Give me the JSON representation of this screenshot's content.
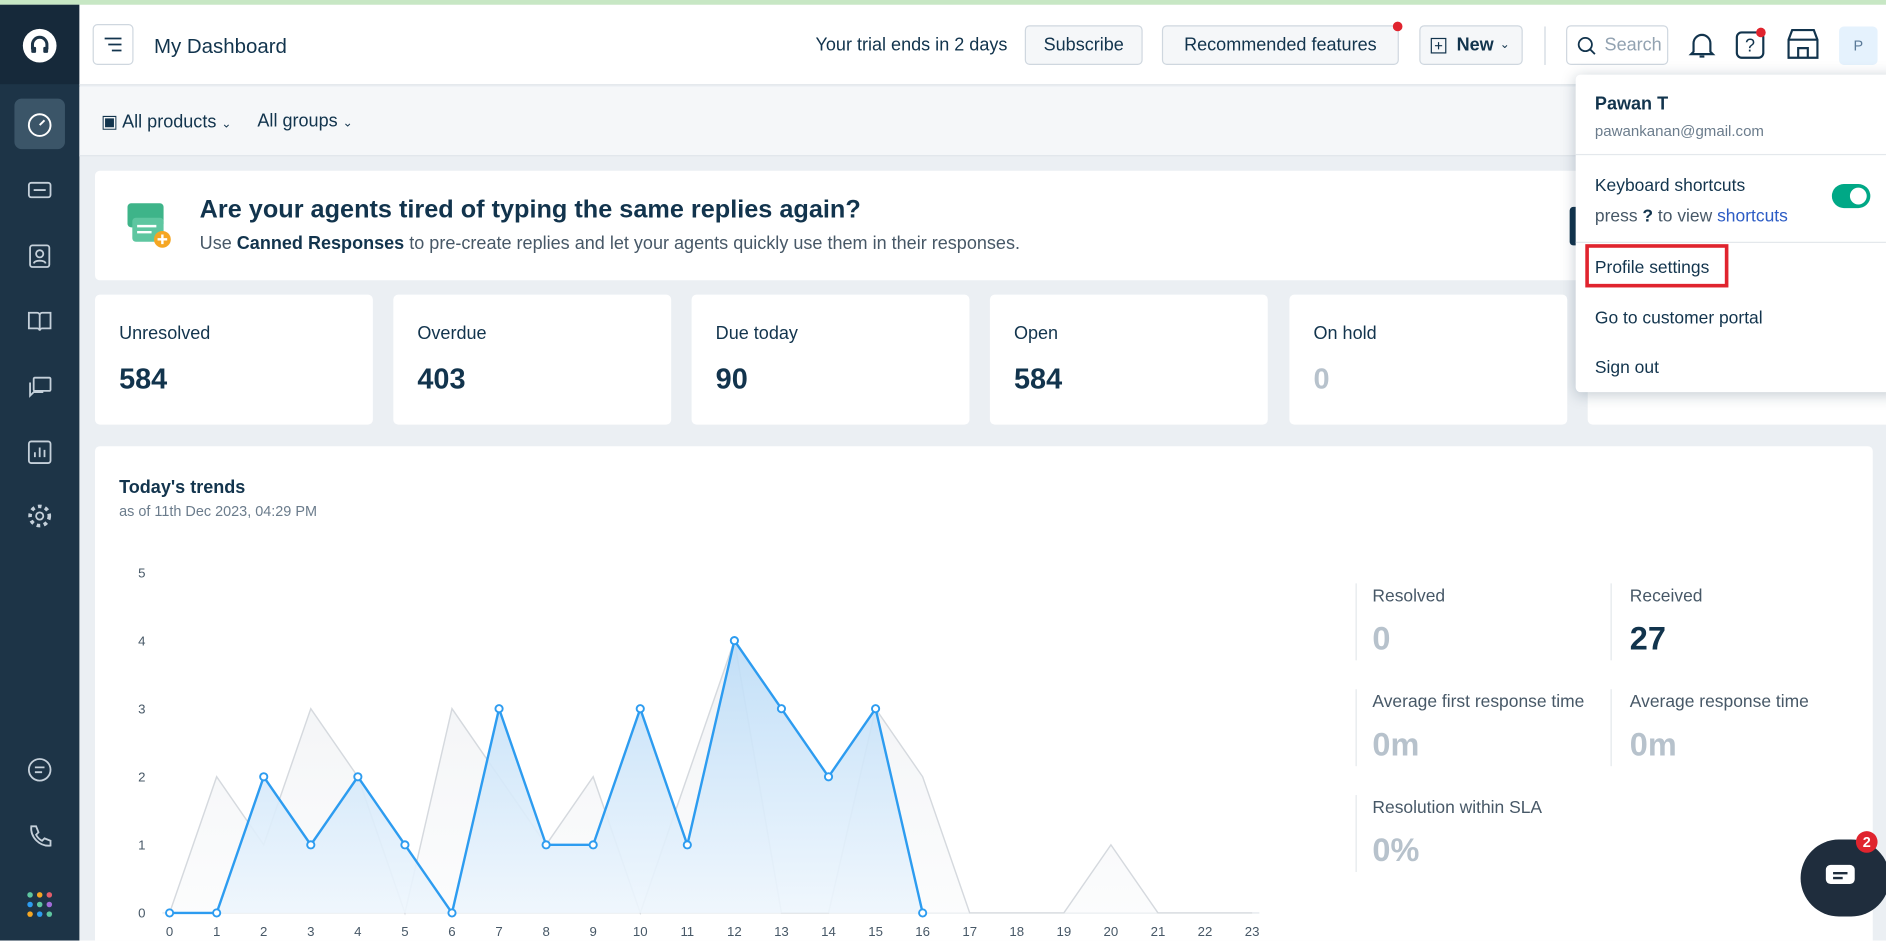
{
  "header": {
    "title": "My Dashboard",
    "trial": "Your trial ends in 2 days",
    "subscribe": "Subscribe",
    "recommended": "Recommended features",
    "new": "New",
    "search": "Search",
    "avatar": "P"
  },
  "filters": [
    "All products",
    "All groups"
  ],
  "banner": {
    "title": "Are your agents tired of typing the same replies again?",
    "prefix": "Use",
    "bold": "Canned Responses",
    "suffix": "to pre-create replies and let your agents quickly use them in their responses."
  },
  "stats": [
    {
      "label": "Unresolved",
      "value": 584
    },
    {
      "label": "Overdue",
      "value": 403
    },
    {
      "label": "Due today",
      "value": 90
    },
    {
      "label": "Open",
      "value": 584
    },
    {
      "label": "On hold",
      "value": 0
    }
  ],
  "trends": {
    "title": "Today's trends",
    "subtitle": "as of 11th Dec 2023, 04:29 PM"
  },
  "metrics": [
    {
      "label": "Resolved",
      "value": "0"
    },
    {
      "label": "Received",
      "value": "27"
    },
    {
      "label": "Average first response time",
      "value": "0m"
    },
    {
      "label": "Average response time",
      "value": "0m"
    },
    {
      "label": "Resolution within SLA",
      "value": "0%"
    }
  ],
  "menu": {
    "name": "Pawan T",
    "email": "pawankanan@gmail.com",
    "shortcuts_title": "Keyboard shortcuts",
    "press": "press",
    "key": "?",
    "to_view": "to view",
    "link": "shortcuts",
    "items": [
      "Profile settings",
      "Go to customer portal",
      "Sign out"
    ]
  },
  "chat_badge": "2",
  "chart_data": {
    "type": "line",
    "x": [
      0,
      1,
      2,
      3,
      4,
      5,
      6,
      7,
      8,
      9,
      10,
      11,
      12,
      13,
      14,
      15,
      16,
      17,
      18,
      19,
      20,
      21,
      22,
      23
    ],
    "xlim": [
      0,
      23
    ],
    "xticks": [
      0,
      1,
      2,
      3,
      4,
      5,
      6,
      7,
      8,
      9,
      10,
      11,
      12,
      13,
      14,
      15,
      16,
      17,
      18,
      19,
      20,
      21,
      22,
      23
    ],
    "ylim": [
      0,
      5
    ],
    "yticks": [
      0,
      1,
      2,
      3,
      4,
      5
    ],
    "series": [
      {
        "color": "#2d9cf0",
        "values": [
          0,
          0,
          2,
          1,
          2,
          1,
          0,
          3,
          1,
          1,
          3,
          1,
          4,
          3,
          2,
          3,
          0,
          null,
          null,
          null,
          null,
          null,
          null,
          null
        ]
      },
      {
        "color": "#d5d9de",
        "values": [
          0,
          2,
          1,
          3,
          2,
          0,
          3,
          2,
          1,
          2,
          0,
          2,
          4,
          0,
          0,
          3,
          2,
          0,
          0,
          0,
          1,
          0,
          0,
          0
        ]
      }
    ]
  }
}
